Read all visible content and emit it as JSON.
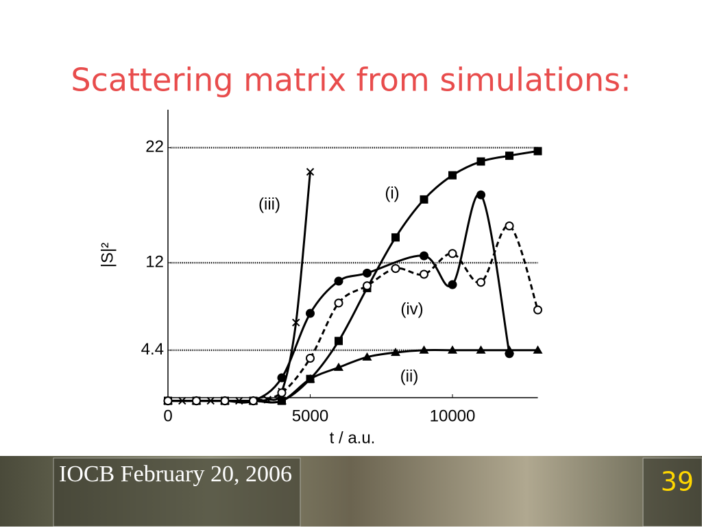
{
  "slide": {
    "title": "Scattering matrix from simulations:",
    "footer": "IOCB February 20, 2006",
    "page_number": "39"
  },
  "chart_data": {
    "type": "line",
    "xlabel": "t / a.u.",
    "ylabel": "|S|²",
    "xlim": [
      0,
      13000
    ],
    "ylim": [
      0,
      25.3
    ],
    "xticks": [
      0,
      5000,
      10000
    ],
    "yticks": [
      4.4,
      12,
      22
    ],
    "grid": true,
    "series": [
      {
        "name": "(i)",
        "marker": "square",
        "color": "#000000",
        "dashed": false,
        "x": [
          0,
          1000,
          2000,
          3000,
          4000,
          5000,
          6000,
          7000,
          8000,
          9000,
          10000,
          11000,
          12000,
          13000
        ],
        "values": [
          0,
          0,
          0,
          0,
          0,
          1.9,
          5.2,
          9.8,
          14.2,
          17.5,
          19.6,
          20.8,
          21.3,
          21.7
        ]
      },
      {
        "name": "(ii)",
        "marker": "triangle",
        "color": "#000000",
        "dashed": false,
        "x": [
          0,
          1000,
          2000,
          3000,
          4000,
          5000,
          6000,
          7000,
          8000,
          9000,
          10000,
          11000,
          12000,
          13000
        ],
        "values": [
          0,
          0,
          0,
          0,
          0,
          1.9,
          2.9,
          3.8,
          4.2,
          4.4,
          4.4,
          4.4,
          4.4,
          4.4
        ]
      },
      {
        "name": "(iii)",
        "marker": "cross",
        "color": "#000000",
        "dashed": false,
        "x": [
          0,
          500,
          1000,
          1500,
          2000,
          2500,
          3000,
          3500,
          4000,
          4500,
          5000
        ],
        "values": [
          0,
          0,
          0,
          0,
          0,
          0,
          0,
          0.1,
          0.8,
          6.8,
          19.9
        ]
      },
      {
        "name": "(iv)",
        "marker": "circle",
        "color": "#000000",
        "dashed": false,
        "x": [
          0,
          1000,
          2000,
          3000,
          4000,
          5000,
          6000,
          7000,
          9000,
          10000,
          11000,
          12000
        ],
        "values": [
          0,
          0,
          0,
          0,
          2.0,
          7.6,
          10.4,
          11.1,
          12.6,
          10.1,
          17.9,
          4.1
        ]
      },
      {
        "marker": "open-circle",
        "color": "#000000",
        "dashed": true,
        "x": [
          0,
          1000,
          2000,
          3000,
          4000,
          5000,
          6000,
          7000,
          8000,
          9000,
          10000,
          11000,
          12000,
          13000
        ],
        "values": [
          0,
          0,
          0,
          0,
          0.7,
          3.7,
          8.5,
          10.0,
          11.5,
          11.0,
          12.8,
          10.3,
          15.2,
          7.9
        ]
      }
    ]
  }
}
